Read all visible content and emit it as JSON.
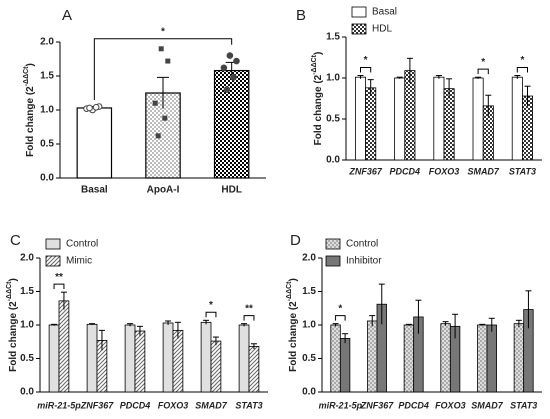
{
  "chart_data": [
    {
      "type": "bar",
      "panel": "A",
      "ylabel": {
        "main": "Fold change (2",
        "sup": "-ΔΔCt",
        "end": ")"
      },
      "categories": [
        "Basal",
        "ApoA-I",
        "HDL"
      ],
      "values": [
        1.03,
        1.25,
        1.58
      ],
      "errors": [
        0.02,
        0.23,
        0.12
      ],
      "colors": [
        "#ffffff",
        "#bbbbbb",
        "#000000"
      ],
      "patterns": [
        "solid",
        "checker",
        "checker"
      ],
      "points": [
        [
          1.0,
          1.05,
          1.02,
          1.04,
          1.03
        ],
        [
          1.9,
          1.72,
          1.1,
          0.88,
          0.62
        ],
        [
          1.8,
          1.72,
          1.62,
          1.48,
          1.3
        ]
      ],
      "point_color": "#444444",
      "ylim": [
        0,
        2
      ],
      "yticks": [
        {
          "value": 0,
          "label": "0.0"
        },
        0.5,
        {
          "value": 1,
          "label": "1.0"
        },
        1.5,
        {
          "value": 2,
          "label": "2.0"
        }
      ],
      "significance": [
        {
          "text": "*",
          "from": "Basal",
          "to": "HDL"
        }
      ]
    },
    {
      "type": "grouped_bar",
      "panel": "B",
      "ylabel": {
        "main": "Fold change (2",
        "sup": "-ΔΔCt",
        "end": ")"
      },
      "categories": [
        "ZNF367",
        "PDCD4",
        "FOXO3",
        "SMAD7",
        "STAT3"
      ],
      "series": [
        {
          "name": "Basal",
          "color": "#ffffff",
          "pattern": "solid",
          "values": [
            1.01,
            1.0,
            1.01,
            1.0,
            1.01
          ],
          "errors": [
            0.02,
            0.01,
            0.02,
            0.01,
            0.02
          ]
        },
        {
          "name": "HDL",
          "color": "#333333",
          "pattern": "checker",
          "values": [
            0.88,
            1.09,
            0.87,
            0.66,
            0.78
          ],
          "errors": [
            0.1,
            0.15,
            0.12,
            0.13,
            0.12
          ]
        }
      ],
      "ylim": [
        0,
        1.5
      ],
      "yticks": [
        {
          "value": 0,
          "label": "0.0"
        },
        0.5,
        {
          "value": 1,
          "label": "1.0"
        },
        1.5
      ],
      "significance": [
        {
          "text": "*",
          "category": "ZNF367"
        },
        {
          "text": "*",
          "category": "SMAD7"
        },
        {
          "text": "*",
          "category": "STAT3"
        }
      ]
    },
    {
      "type": "grouped_bar",
      "panel": "C",
      "ylabel": {
        "main": "Fold change (2",
        "sup": "-ΔΔCt",
        "end": ")"
      },
      "categories": [
        "miR-21-5p",
        "ZNF367",
        "PDCD4",
        "FOXO3",
        "SMAD7",
        "STAT3"
      ],
      "series": [
        {
          "name": "Control",
          "color": "#e0e0e0",
          "pattern": "solid",
          "values": [
            1.0,
            1.01,
            1.0,
            1.03,
            1.04,
            1.0
          ],
          "errors": [
            0.01,
            0.01,
            0.02,
            0.03,
            0.03,
            0.02
          ]
        },
        {
          "name": "Mimic",
          "color": "#666666",
          "pattern": "hatch",
          "values": [
            1.36,
            0.77,
            0.91,
            0.92,
            0.76,
            0.68
          ],
          "errors": [
            0.13,
            0.15,
            0.07,
            0.12,
            0.06,
            0.04
          ]
        }
      ],
      "ylim": [
        0,
        2
      ],
      "yticks": [
        {
          "value": 0,
          "label": "0.0"
        },
        0.5,
        {
          "value": 1,
          "label": "1.0"
        },
        1.5,
        {
          "value": 2,
          "label": "2.0"
        }
      ],
      "significance": [
        {
          "text": "**",
          "category": "miR-21-5p"
        },
        {
          "text": "*",
          "category": "SMAD7"
        },
        {
          "text": "**",
          "category": "STAT3"
        }
      ]
    },
    {
      "type": "grouped_bar",
      "panel": "D",
      "ylabel": {
        "main": "Fold change (2",
        "sup": "-ΔΔCt",
        "end": ")"
      },
      "categories": [
        "miR-21-5p",
        "ZNF367",
        "PDCD4",
        "FOXO3",
        "SMAD7",
        "STAT3"
      ],
      "series": [
        {
          "name": "Control",
          "color": "#888888",
          "pattern": "dots",
          "values": [
            1.0,
            1.06,
            1.0,
            1.02,
            1.0,
            1.02
          ],
          "errors": [
            0.02,
            0.08,
            0.01,
            0.03,
            0.01,
            0.05
          ]
        },
        {
          "name": "Inhibitor",
          "color": "#777777",
          "pattern": "solid",
          "values": [
            0.8,
            1.31,
            1.12,
            0.98,
            1.0,
            1.23
          ],
          "errors": [
            0.07,
            0.3,
            0.25,
            0.18,
            0.1,
            0.28
          ]
        }
      ],
      "ylim": [
        0,
        2
      ],
      "yticks": [
        {
          "value": 0,
          "label": "0.0"
        },
        0.5,
        {
          "value": 1,
          "label": "1.0"
        },
        1.5,
        {
          "value": 2,
          "label": "2.0"
        }
      ],
      "significance": [
        {
          "text": "*",
          "category": "miR-21-5p"
        }
      ]
    }
  ]
}
